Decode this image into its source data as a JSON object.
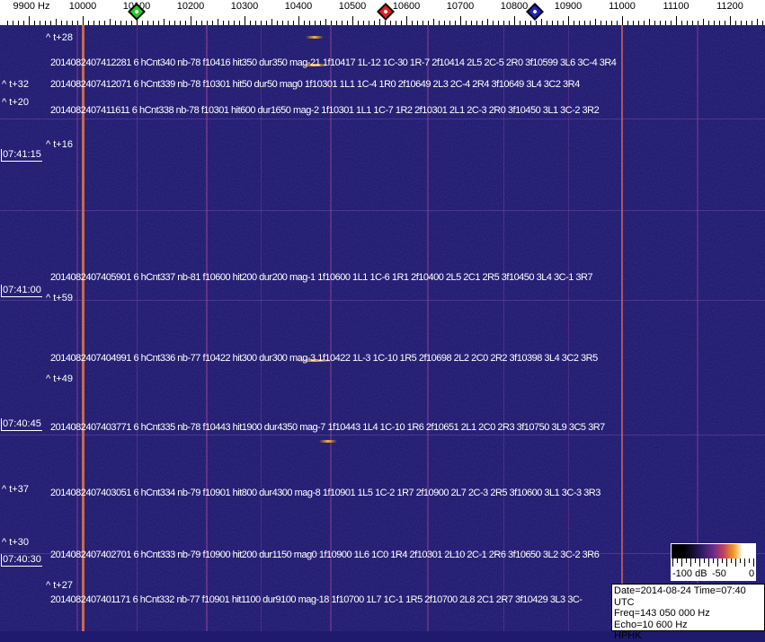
{
  "axis": {
    "unit_label": "9900 Hz",
    "ticks": [
      "10000",
      "10100",
      "10200",
      "10300",
      "10400",
      "10500",
      "10600",
      "10700",
      "10800",
      "10900",
      "11000",
      "11100",
      "11200"
    ],
    "markers": [
      {
        "name": "green-marker",
        "color": "#22cc22",
        "freq_hz": 10100
      },
      {
        "name": "red-marker",
        "color": "#dd2222",
        "freq_hz": 10562
      },
      {
        "name": "blue-marker",
        "color": "#2222cc",
        "freq_hz": 10838
      }
    ]
  },
  "detections": [
    "2014082407412281 6 hCnt340 nb-78 f10416 hit350 dur350 mag-21 1f10417 1L-12 1C-30 1R-7 2f10414 2L5 2C-5 2R0 3f10599 3L6 3C-4 3R4",
    "2014082407412071 6 hCnt339 nb-78 f10301 hit50 dur50 mag0 1f10301 1L1 1C-4 1R0 2f10649 2L3 2C-4 2R4 3f10649 3L4 3C2 3R4",
    "2014082407411611 6 hCnt338 nb-78 f10301 hit600 dur1650 mag-2 1f10301 1L1 1C-7 1R2 2f10301 2L1 2C-3 2R0 3f10450 3L1 3C-2 3R2",
    "2014082407405901 6 hCnt337 nb-81 f10600 hit200 dur200 mag-1 1f10600 1L1 1C-6 1R1 2f10400 2L5 2C1 2R5 3f10450 3L4 3C-1 3R7",
    "2014082407404991 6 hCnt336 nb-77 f10422 hit300 dur300 mag-3 1f10422 1L-3 1C-10 1R5 2f10698 2L2 2C0 2R2 3f10398 3L4 3C2 3R5",
    "2014082407403771 6 hCnt335 nb-78 f10443 hit1900 dur4350 mag-7 1f10443 1L4 1C-10 1R6 2f10651 2L1 2C0 2R3 3f10750 3L9 3C5 3R7",
    "2014082407403051 6 hCnt334 nb-79 f10901 hit800 dur4300 mag-8 1f10901 1L5 1C-2 1R7 2f10900 2L7 2C-3 2R5 3f10600 3L1 3C-3 3R3",
    "2014082407402701 6 hCnt333 nb-79 f10900 hit200 dur1150 mag0 1f10900 1L6 1C0 1R4 2f10301 2L10 2C-1 2R6 3f10650 3L2 3C-2 3R6",
    "2014082407401171 6 hCnt332 nb-77 f10901 hit1100 dur9100 mag-18 1f10700 1L7 1C-1 1R5 2f10700 2L8 2C1 2R7 3f10429 3L3 3C-"
  ],
  "time_offsets": [
    "^ t+28",
    "^ t+32",
    "^ t+20",
    "^ t+16",
    "^ t+59",
    "^ t+49",
    "^ t+37",
    "^ t+30",
    "^ t+27"
  ],
  "timestamps": [
    "07:41:15",
    "07:41:00",
    "07:40:45",
    "07:40:30"
  ],
  "colorbar": {
    "labels": [
      "-100 dB",
      "-50",
      "0"
    ]
  },
  "info": {
    "date_time": "Date=2014-08-24 Time=07:40 UTC",
    "freq": "Freq=143 050 000 Hz",
    "echo": "Echo=10 600 Hz",
    "station": "HPHK"
  },
  "colors": {
    "background": "#1f1a6e",
    "carrier": "#ff9040",
    "text": "#ffffff"
  }
}
